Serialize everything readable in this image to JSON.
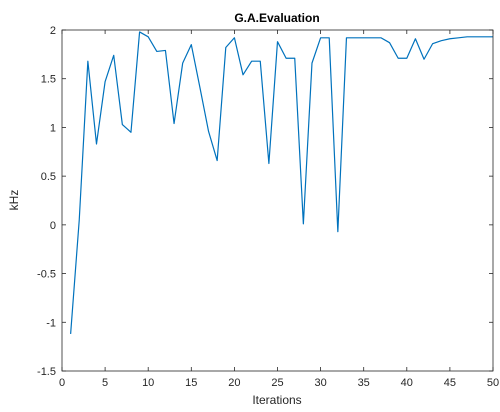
{
  "chart_data": {
    "type": "line",
    "title": "G.A.Evaluation",
    "xlabel": "Iterations",
    "ylabel": "kHz",
    "xlim": [
      0,
      50
    ],
    "ylim": [
      -1.5,
      2
    ],
    "xticks": [
      "0",
      "5",
      "10",
      "15",
      "20",
      "25",
      "30",
      "35",
      "40",
      "45",
      "50"
    ],
    "yticks": [
      "-1.5",
      "-1",
      "-0.5",
      "0",
      "0.5",
      "1",
      "1.5",
      "2"
    ],
    "grid": false,
    "box": true,
    "line_color": "#0072BD",
    "series": [
      {
        "x": [
          1,
          2,
          3,
          4,
          5,
          6,
          7,
          8,
          9,
          10,
          11,
          12,
          13,
          14,
          15,
          16,
          17,
          18,
          19,
          20,
          21,
          22,
          23,
          24,
          25,
          26,
          27,
          28,
          29,
          30,
          31,
          32,
          33,
          34,
          35,
          36,
          37,
          38,
          39,
          40,
          41,
          42,
          43,
          44,
          45,
          46,
          47,
          48,
          49,
          50
        ],
        "values": [
          -1.12,
          0.05,
          1.68,
          0.83,
          1.47,
          1.74,
          1.03,
          0.95,
          1.98,
          1.93,
          1.78,
          1.79,
          1.04,
          1.66,
          1.85,
          1.41,
          0.96,
          0.66,
          1.82,
          1.92,
          1.54,
          1.68,
          1.68,
          0.63,
          1.88,
          1.71,
          1.71,
          0.01,
          1.66,
          1.92,
          1.92,
          -0.07,
          1.92,
          1.92,
          1.92,
          1.92,
          1.92,
          1.87,
          1.71,
          1.71,
          1.91,
          1.7,
          1.86,
          1.89,
          1.91,
          1.92,
          1.93,
          1.93,
          1.93,
          1.93
        ]
      }
    ]
  }
}
